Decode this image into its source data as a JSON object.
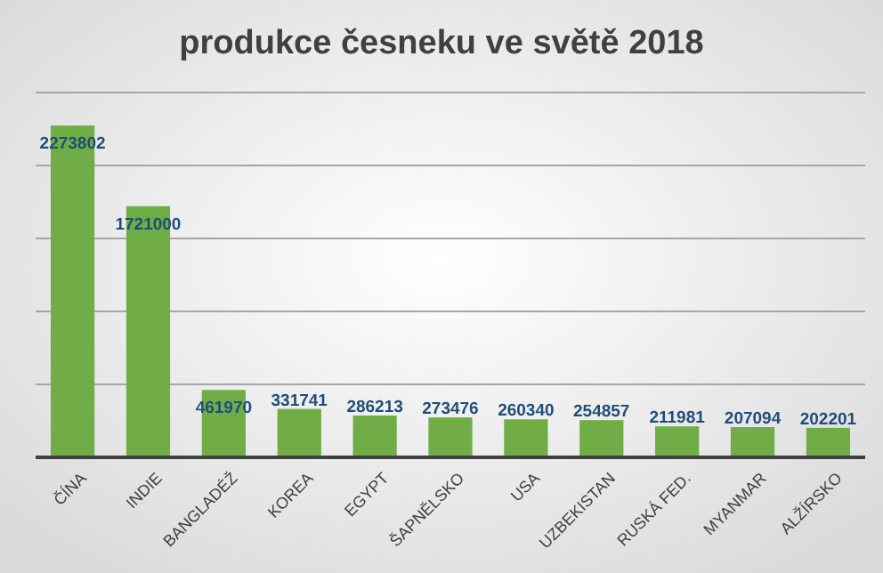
{
  "chart_data": {
    "type": "bar",
    "title": "produkce česneku ve světě 2018",
    "categories": [
      "ČÍNA",
      "INDIE",
      "BANGLADÉŽ",
      "KOREA",
      "EGYPT",
      "ŠAPNĚLSKO",
      "USA",
      "UZBEKISTAN",
      "RUSKÁ FED.",
      "MYANMAR",
      "ALŽÍRSKO"
    ],
    "values": [
      2273802,
      1721000,
      461970,
      331741,
      286213,
      273476,
      260340,
      254857,
      211981,
      207094,
      202201
    ],
    "color": "#70ad47",
    "ylim": [
      0,
      2500000
    ],
    "yticks": [
      {
        "value": 0,
        "label": null
      },
      {
        "value": 500000,
        "label": null
      },
      {
        "value": 1000000,
        "label": null
      },
      {
        "value": 1500000,
        "label": null
      },
      {
        "value": 2000000,
        "label": null
      },
      {
        "value": 2500000,
        "label": null
      }
    ],
    "grid": true,
    "data_labels": true,
    "tick_labels": "x"
  }
}
